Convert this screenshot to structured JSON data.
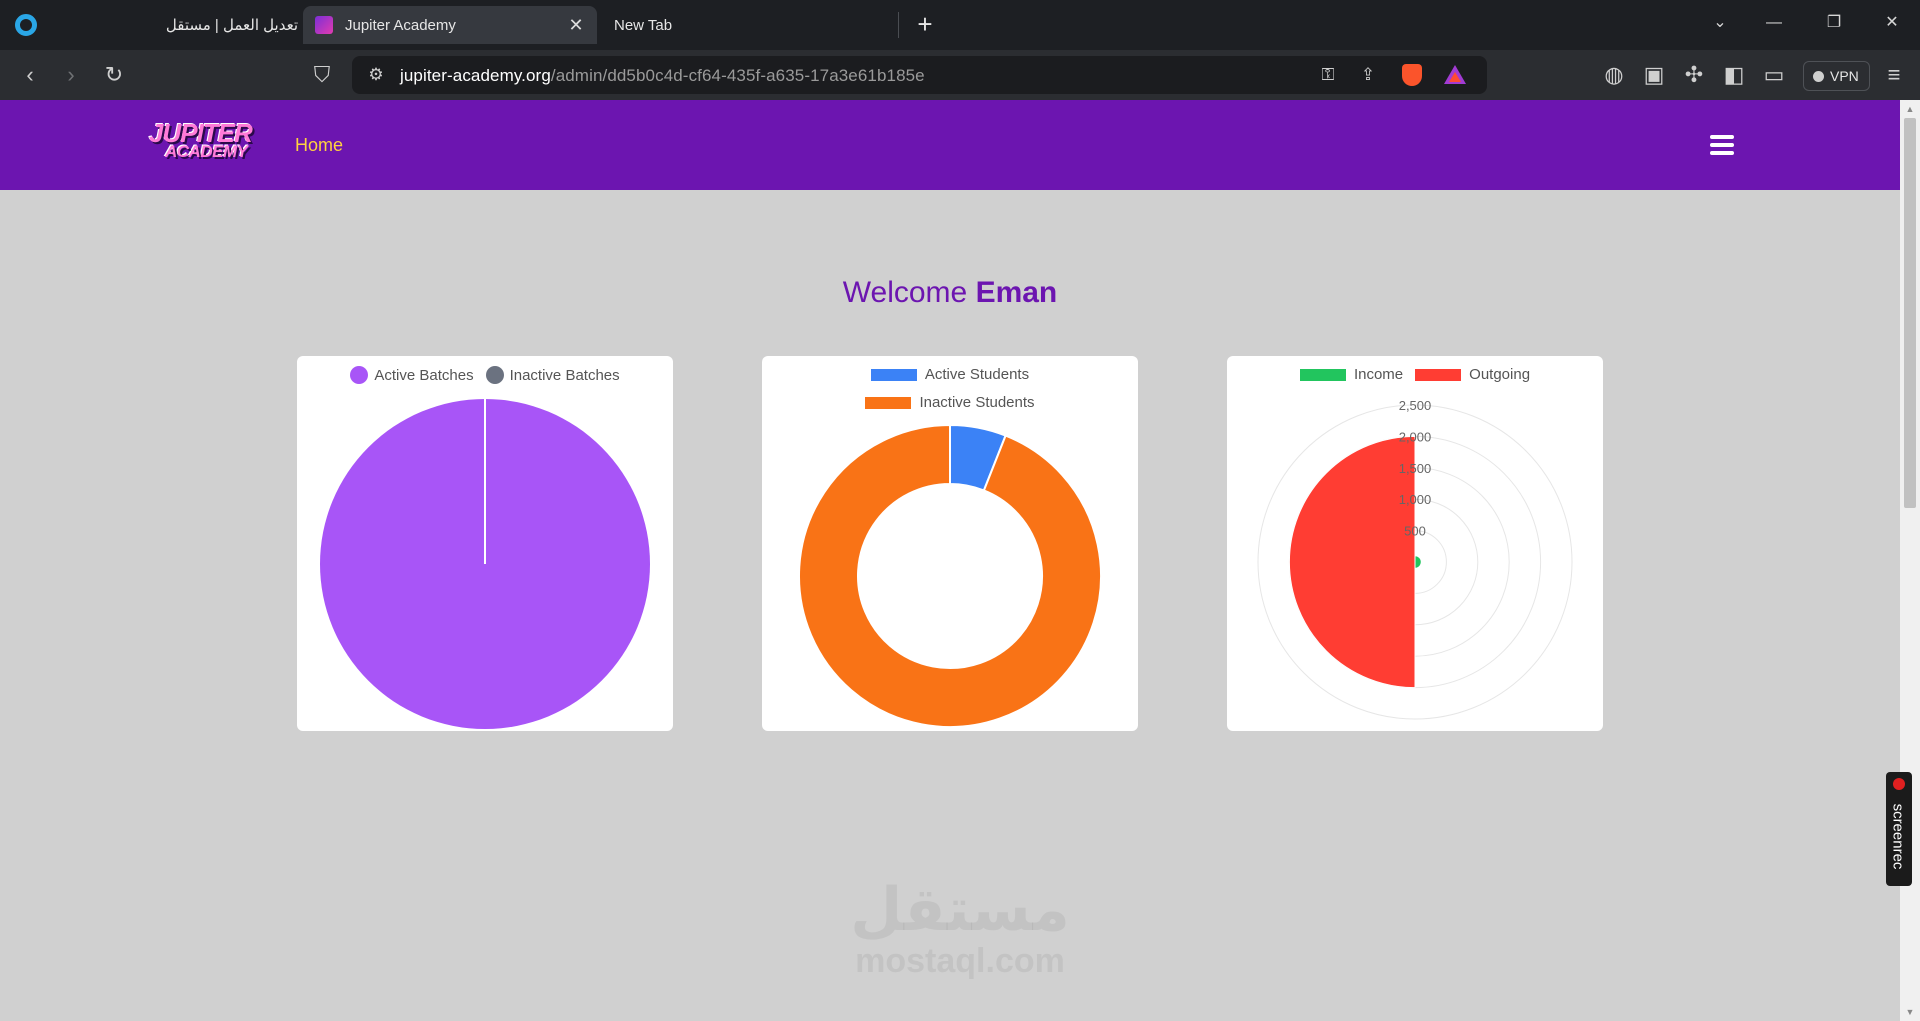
{
  "browser": {
    "tabs": [
      {
        "label": "تعديل العمل | مستقل",
        "active": false
      },
      {
        "label": "Jupiter Academy",
        "active": true
      },
      {
        "label": "New Tab",
        "active": false
      }
    ],
    "new_tab_icon": "+",
    "url_host": "jupiter-academy.org",
    "url_path": "/admin/dd5b0c4d-cf64-435f-a635-17a3e61b185e",
    "vpn_label": "VPN"
  },
  "navbar": {
    "logo_top": "JUPITER",
    "logo_bottom": "ACADEMY",
    "home_link": "Home"
  },
  "welcome": {
    "prefix": "Welcome",
    "name": "Eman"
  },
  "colors": {
    "brand_purple": "#6c15b0",
    "active_batches": "#a855f7",
    "inactive_batches": "#6b7280",
    "active_students": "#3b82f6",
    "inactive_students": "#f97316",
    "income": "#22c55e",
    "outgoing": "#ff3d33"
  },
  "chart_data": [
    {
      "type": "pie",
      "labels": [
        "Active Batches",
        "Inactive Batches"
      ],
      "values": [
        100,
        0
      ],
      "legend": "top"
    },
    {
      "type": "doughnut",
      "labels": [
        "Active Students",
        "Inactive Students"
      ],
      "values": [
        6,
        94
      ],
      "legend": "top"
    },
    {
      "type": "polarArea",
      "labels": [
        "Income",
        "Outgoing"
      ],
      "values": [
        100,
        2000
      ],
      "r_ticks": [
        "500",
        "1,000",
        "1,500",
        "2,000",
        "2,500"
      ],
      "r_max": 2500,
      "legend": "top"
    }
  ],
  "watermark": {
    "arabic": "مستقل",
    "latin": "mostaql.com"
  },
  "screenrec_label": "screenrec"
}
